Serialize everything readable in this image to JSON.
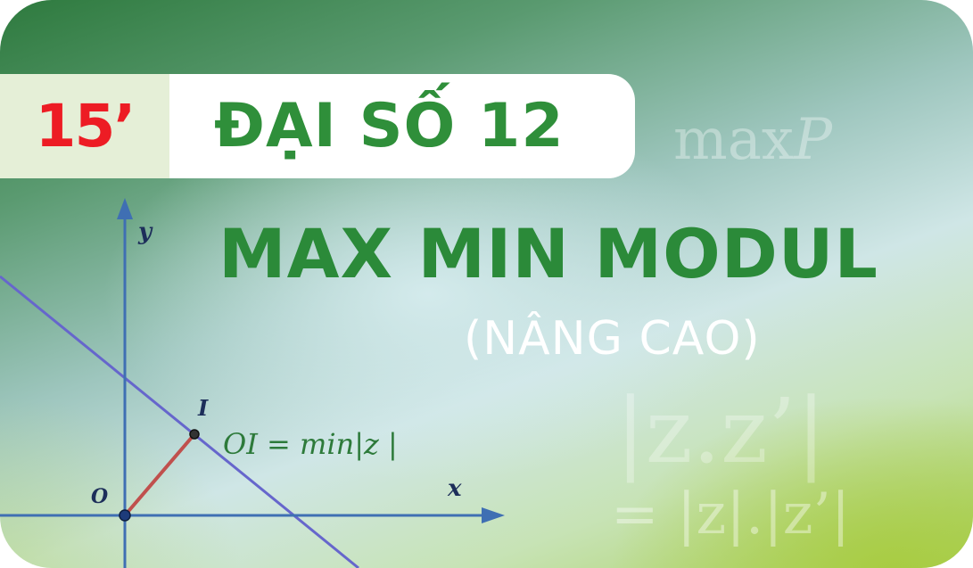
{
  "badge": {
    "label": "15’",
    "color": "#ed1c24"
  },
  "subject": "ĐẠI SỐ 12",
  "title": "MAX MIN MODUL",
  "subtitle": "(NÂNG CAO)",
  "decor": {
    "maxp_text": "max",
    "maxp_var": "P",
    "modulus_product": "|z.z’|",
    "modulus_equality": "= |z|.|z’|"
  },
  "graph": {
    "y_label": "y",
    "x_label": "x",
    "origin_label": "O",
    "point_label": "I",
    "equation": "OI = min|z |"
  },
  "colors": {
    "title_green": "#2b8a39",
    "axis_blue": "#3f6fb3",
    "line_purple": "#6666cc",
    "segment_red": "#c0504d"
  }
}
